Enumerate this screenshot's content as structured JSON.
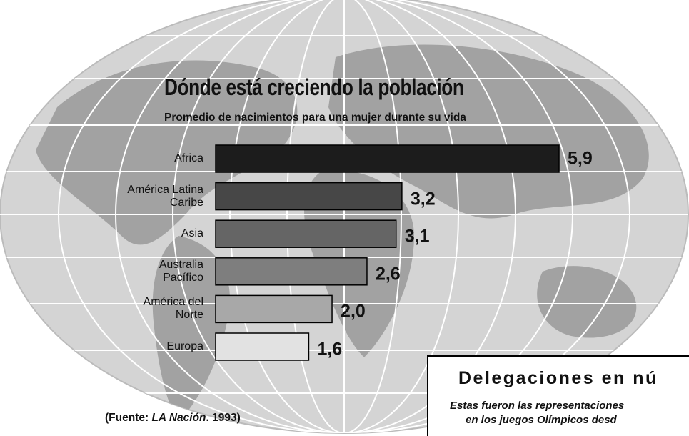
{
  "chart_data": {
    "type": "bar",
    "orientation": "horizontal",
    "title": "Dónde está creciendo la población",
    "subtitle": "Promedio de nacimientos para una mujer durante su vida",
    "categories": [
      "África",
      "América Latina\nCaribe",
      "Asia",
      "Australia\nPacífico",
      "América del\nNorte",
      "Europa"
    ],
    "values": [
      5.9,
      3.2,
      3.1,
      2.6,
      2.0,
      1.6
    ],
    "value_labels": [
      "5,9",
      "3,2",
      "3,1",
      "2,6",
      "2,0",
      "1,6"
    ],
    "colors": [
      "#1c1c1c",
      "#474747",
      "#656565",
      "#7e7e7e",
      "#a8a8a8",
      "#e2e2e2"
    ],
    "source": [
      "(Fuente: ",
      "LA Nación",
      ". 1993)"
    ]
  },
  "panel": {
    "title": "Delegaciones en nú",
    "lines": [
      "Estas fueron las representaciones",
      "en los juegos Olímpicos desd"
    ]
  }
}
